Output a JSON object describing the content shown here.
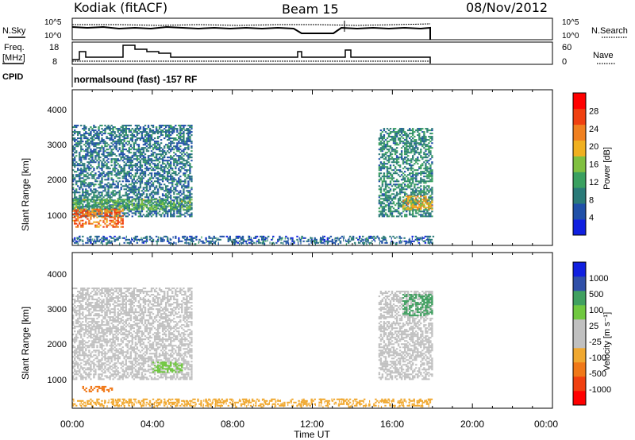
{
  "header": {
    "station": "Kodiak (fitACF)",
    "beam": "Beam 15",
    "date": "08/Nov/2012"
  },
  "status_panels": {
    "nsky_label": "N.Sky",
    "nsearch_label": "N.Search",
    "nsky_ticks": [
      "10^5",
      "10^0"
    ],
    "nsearch_ticks": [
      "10^5",
      "10^0"
    ],
    "freq_label_1": "Freq.",
    "freq_label_2": "[MHz]",
    "freq_ticks": [
      "18",
      "8"
    ],
    "nave_label": "Nave",
    "nave_ticks": [
      "60",
      "0"
    ],
    "cpid_label": "CPID",
    "cpid_text": "normalsound (fast) -157 RF"
  },
  "colors": {
    "power_scale": [
      "#1020e0",
      "#2050a8",
      "#2a7a78",
      "#3aa060",
      "#80c040",
      "#f0b020",
      "#f08020",
      "#f04010",
      "#ff0000"
    ],
    "velocity_scale": [
      "#ff0000",
      "#f04010",
      "#f07818",
      "#f0a830",
      "#c0c0c0",
      "#c0c0c0",
      "#70c840",
      "#40a060",
      "#3050a8",
      "#1020e0"
    ]
  },
  "chart_data": [
    {
      "type": "heatmap",
      "name": "power",
      "ylabel": "Slant Range [km]",
      "yticks": [
        "1000",
        "2000",
        "3000",
        "4000"
      ],
      "ylim": [
        200,
        4600
      ],
      "xlim": [
        "00:00",
        "24:00"
      ],
      "colorbar_label": "Power [dB]",
      "colorbar_ticks": [
        "4",
        "8",
        "12",
        "16",
        "20",
        "24",
        "28"
      ],
      "colorbar_range": [
        0,
        32
      ],
      "regions": [
        {
          "t0": 0.0,
          "t1": 6.0,
          "r0": 1000,
          "r1": 3600,
          "level": 8
        },
        {
          "t0": 0.0,
          "t1": 6.0,
          "r0": 1200,
          "r1": 1500,
          "level": 14
        },
        {
          "t0": 0.0,
          "t1": 2.5,
          "r0": 700,
          "r1": 1200,
          "level": 24
        },
        {
          "t0": 15.3,
          "t1": 18.0,
          "r0": 1000,
          "r1": 3500,
          "level": 10
        },
        {
          "t0": 16.5,
          "t1": 18.0,
          "r0": 1200,
          "r1": 1600,
          "level": 20
        },
        {
          "t0": 0.0,
          "t1": 18.0,
          "r0": 250,
          "r1": 450,
          "level": 6
        }
      ]
    },
    {
      "type": "heatmap",
      "name": "velocity",
      "ylabel": "Slant Range [km]",
      "yticks": [
        "1000",
        "2000",
        "3000",
        "4000"
      ],
      "ylim": [
        200,
        4600
      ],
      "xlim": [
        "00:00",
        "24:00"
      ],
      "xticks": [
        "00:00",
        "04:00",
        "08:00",
        "12:00",
        "16:00",
        "20:00",
        "00:00"
      ],
      "xlabel": "Time UT",
      "colorbar_label": "Velocity [m s⁻¹]",
      "colorbar_ticks": [
        "-1000",
        "-500",
        "-100",
        "-25",
        "25",
        "100",
        "500",
        "1000"
      ],
      "regions": [
        {
          "t0": 0.0,
          "t1": 6.0,
          "r0": 1000,
          "r1": 3600,
          "level": 0
        },
        {
          "t0": 0.5,
          "t1": 2.0,
          "r0": 650,
          "r1": 800,
          "level": -150
        },
        {
          "t0": 4.0,
          "t1": 5.5,
          "r0": 1200,
          "r1": 1500,
          "level": 80
        },
        {
          "t0": 15.3,
          "t1": 18.0,
          "r0": 1000,
          "r1": 3500,
          "level": 0
        },
        {
          "t0": 16.5,
          "t1": 18.0,
          "r0": 2800,
          "r1": 3400,
          "level": 120
        },
        {
          "t0": 0.0,
          "t1": 18.0,
          "r0": 250,
          "r1": 450,
          "level": -60
        }
      ]
    }
  ]
}
